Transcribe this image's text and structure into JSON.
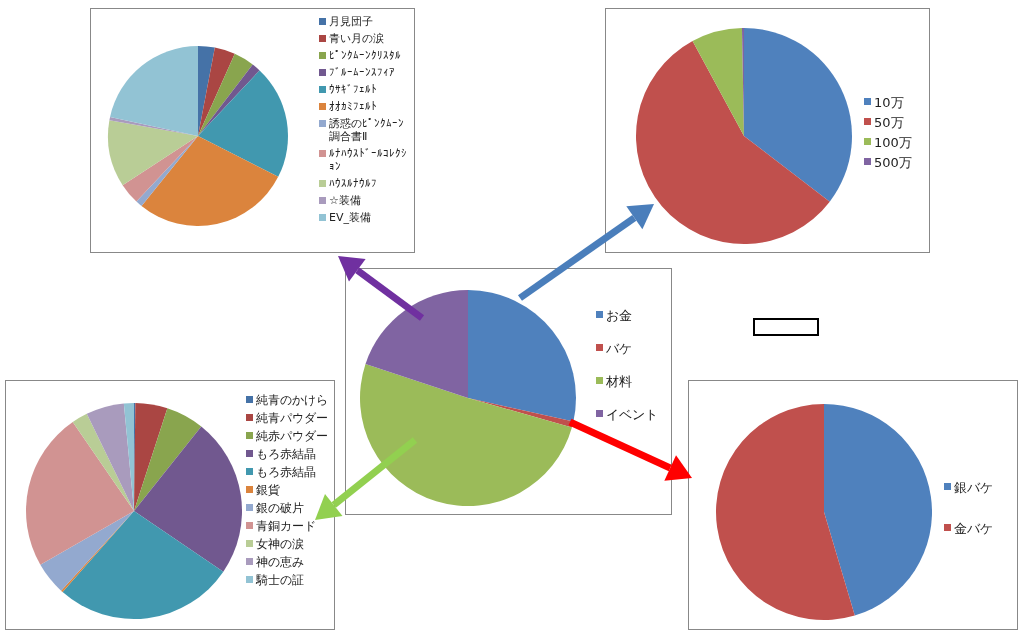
{
  "chart_data": [
    {
      "type": "pie",
      "categories": [
        "月見団子",
        "青い月の涙",
        "ﾋﾟﾝｸﾑｰﾝｸﾘｽﾀﾙ",
        "ﾌﾞﾙｰﾑｰﾝｽﾌｨｱ",
        "ｳｻｷﾞﾌｪﾙﾄ",
        "ｵｵｶﾐﾌｪﾙﾄ",
        "誘惑のﾋﾟﾝｸﾑｰﾝ調合書Ⅱ",
        "ﾙﾅﾊｳｽﾄﾞｰﾙｺﾚｸｼｮﾝ",
        "ﾊｳｽﾙﾅｳﾙﾌ",
        "☆装備",
        "EV_装備"
      ],
      "values": [
        3,
        3.7,
        3.7,
        1.6,
        20.5,
        28.3,
        1.2,
        3.8,
        12,
        0.6,
        21.6
      ],
      "colors": [
        "#4572a7",
        "#aa4643",
        "#89a54e",
        "#71588f",
        "#4198af",
        "#db843d",
        "#93a9cf",
        "#d19392",
        "#b9cd96",
        "#a99bbd",
        "#92c3d4"
      ],
      "legend": "right"
    },
    {
      "type": "pie",
      "categories": [
        "10万",
        "50万",
        "100万",
        "500万"
      ],
      "values": [
        35.4,
        56.7,
        7.6,
        0.3
      ],
      "colors": [
        "#4f81bd",
        "#c0504d",
        "#9bbb59",
        "#8064a2"
      ],
      "legend": "right"
    },
    {
      "type": "pie",
      "categories": [
        "お金",
        "バケ",
        "材料",
        "イベント"
      ],
      "values": [
        28.5,
        0.9,
        50.7,
        19.9
      ],
      "colors": [
        "#4f81bd",
        "#c0504d",
        "#9bbb59",
        "#8064a2"
      ],
      "legend": "right"
    },
    {
      "type": "pie",
      "categories": [
        "純青のかけら",
        "純青パウダー",
        "純赤パウダー",
        "もろ赤結晶",
        "もろ赤結晶",
        "銀貨",
        "銀の破片",
        "青銅カード",
        "女神の涙",
        "神の恵み",
        "騎士の証"
      ],
      "values": [
        0.2,
        4.8,
        5.7,
        23.8,
        27,
        0.3,
        4.9,
        23.7,
        2.4,
        5.7,
        1.5
      ],
      "colors": [
        "#4572a7",
        "#aa4643",
        "#89a54e",
        "#71588f",
        "#4198af",
        "#db843d",
        "#93a9cf",
        "#d19392",
        "#b9cd96",
        "#a99bbd",
        "#92c3d4"
      ],
      "legend": "right"
    },
    {
      "type": "pie",
      "categories": [
        "銀バケ",
        "金バケ"
      ],
      "values": [
        45.4,
        54.6
      ],
      "colors": [
        "#4f81bd",
        "#c0504d"
      ],
      "legend": "right"
    }
  ]
}
